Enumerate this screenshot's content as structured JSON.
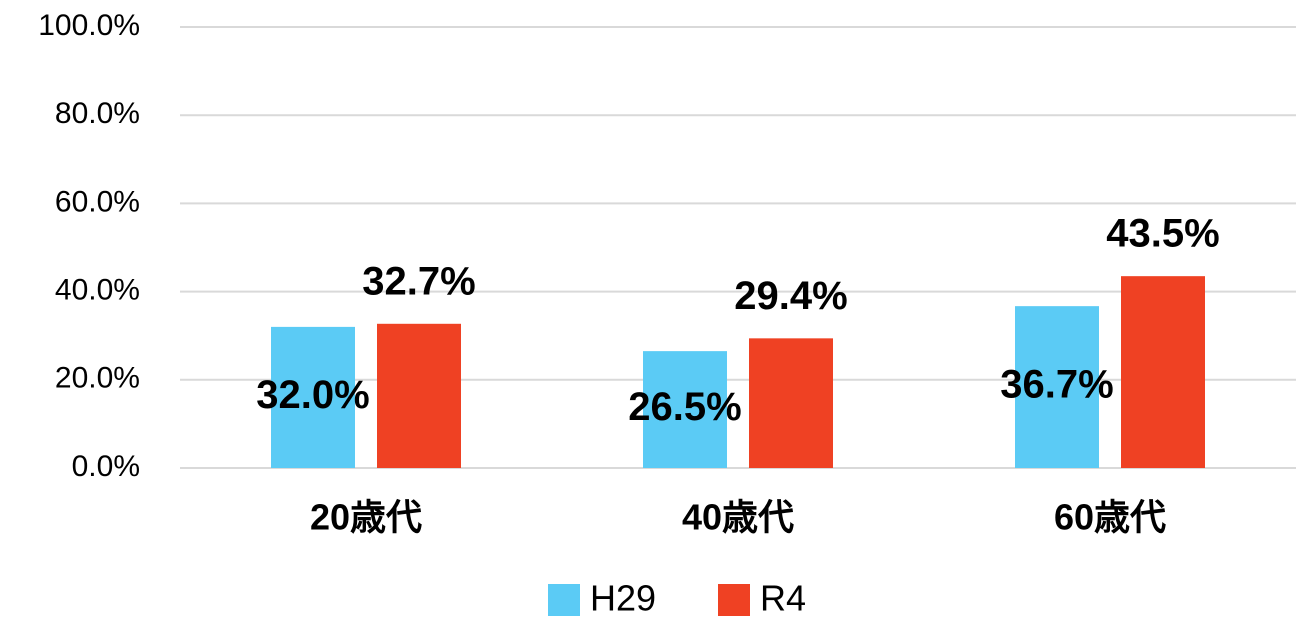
{
  "chart_data": {
    "type": "bar",
    "categories": [
      "20歳代",
      "40歳代",
      "60歳代"
    ],
    "series": [
      {
        "name": "H29",
        "color": "#5bcbf5",
        "values": [
          32.0,
          26.5,
          36.7
        ],
        "value_labels": [
          "32.0%",
          "26.5%",
          "36.7%"
        ]
      },
      {
        "name": "R4",
        "color": "#ef4123",
        "values": [
          32.7,
          29.4,
          43.5
        ],
        "value_labels": [
          "32.7%",
          "29.4%",
          "43.5%"
        ]
      }
    ],
    "ylim": [
      0,
      100
    ],
    "yticks": [
      {
        "value": 0,
        "label": "0.0%"
      },
      {
        "value": 20,
        "label": "20.0%"
      },
      {
        "value": 40,
        "label": "40.0%"
      },
      {
        "value": 60,
        "label": "60.0%"
      },
      {
        "value": 80,
        "label": "80.0%"
      },
      {
        "value": 100,
        "label": "100.0%"
      }
    ],
    "grid": true,
    "legend": "bottom"
  }
}
